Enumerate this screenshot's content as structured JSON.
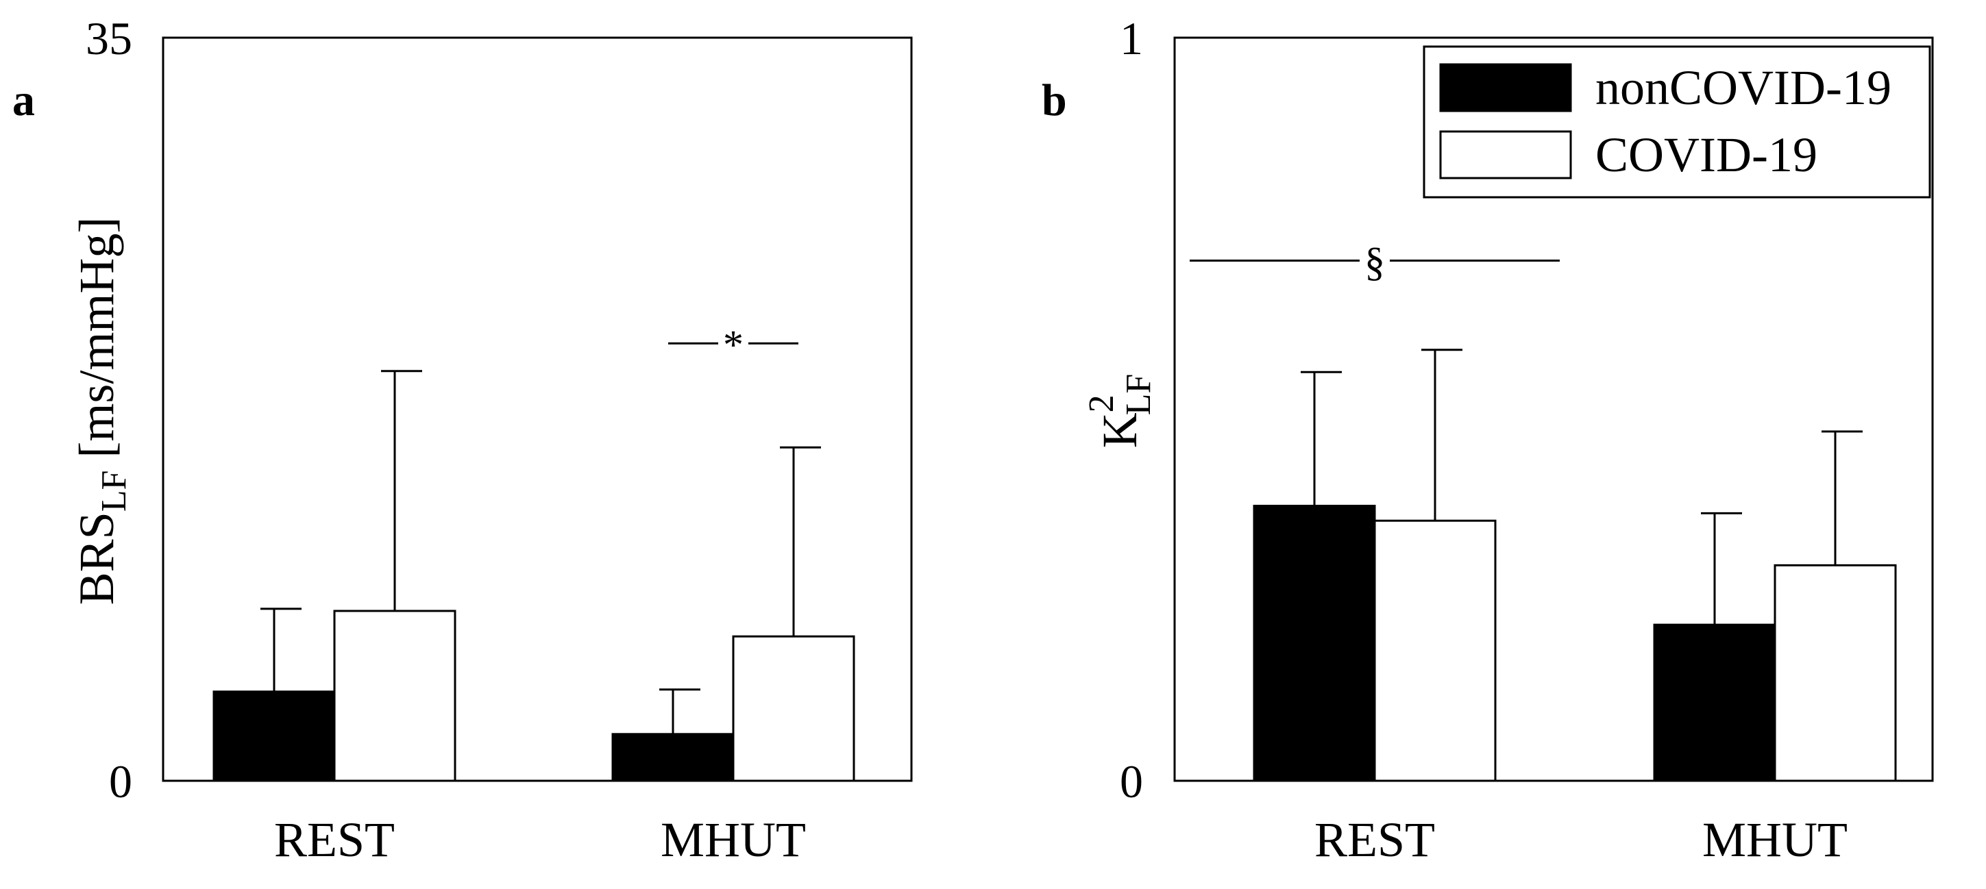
{
  "chart_data": [
    {
      "type": "bar",
      "panel_label": "a",
      "ylabel_main": "BRS",
      "ylabel_sub": "LF",
      "ylabel_units": " [ms/mmHg]",
      "ylim": [
        0,
        35
      ],
      "y_ticks": [
        "0",
        "35"
      ],
      "categories": [
        "REST",
        "MHUT"
      ],
      "series": [
        {
          "name": "nonCOVID-19",
          "color": "#000000",
          "values": [
            4.2,
            2.2
          ],
          "errors": [
            3.9,
            2.1
          ]
        },
        {
          "name": "COVID-19",
          "color": "#ffffff",
          "values": [
            8.0,
            6.8
          ],
          "errors": [
            11.3,
            8.9
          ]
        }
      ],
      "annotation": {
        "symbol": "*",
        "category": "MHUT",
        "y": 20.6
      },
      "grid": false
    },
    {
      "type": "bar",
      "panel_label": "b",
      "ylabel_main": "K",
      "ylabel_sup": "2",
      "ylabel_sub": "LF",
      "ylim": [
        0,
        1
      ],
      "y_ticks": [
        "0",
        "1"
      ],
      "categories": [
        "REST",
        "MHUT"
      ],
      "series": [
        {
          "name": "nonCOVID-19",
          "color": "#000000",
          "values": [
            0.37,
            0.21
          ],
          "errors": [
            0.18,
            0.15
          ]
        },
        {
          "name": "COVID-19",
          "color": "#ffffff",
          "values": [
            0.35,
            0.29
          ],
          "errors": [
            0.23,
            0.18
          ]
        }
      ],
      "annotation": {
        "symbol": "§",
        "category": "REST",
        "y": 0.7
      },
      "legend": {
        "position": "top-right",
        "entries": [
          {
            "label": "nonCOVID-19",
            "color": "#000000"
          },
          {
            "label": "COVID-19",
            "color": "#ffffff"
          }
        ]
      },
      "grid": false
    }
  ]
}
